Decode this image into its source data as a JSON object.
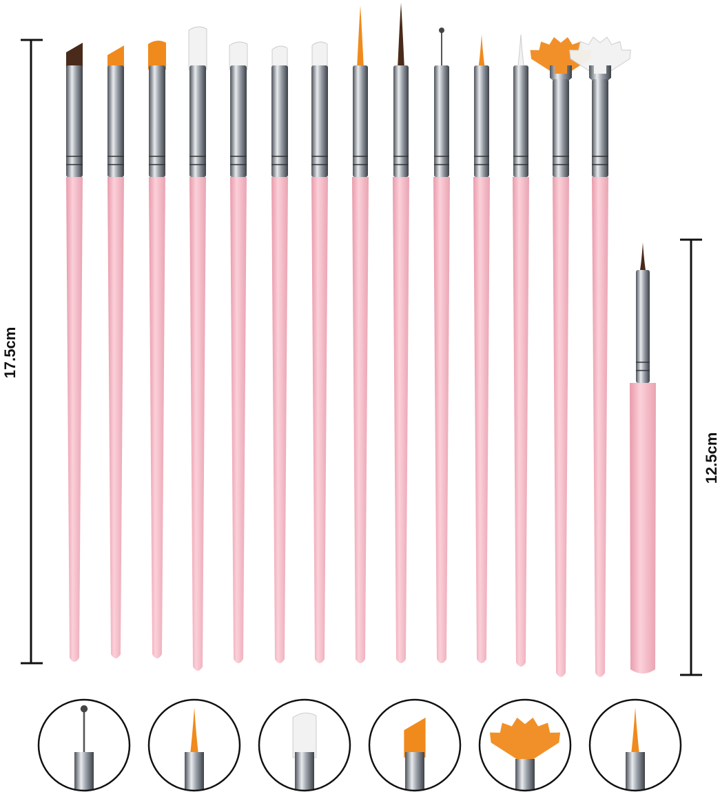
{
  "measurements": {
    "long_label": "17.5cm",
    "short_label": "12.5cm"
  },
  "colors": {
    "handle": "#f7b8c4",
    "handle_shade": "#e99aab",
    "ferrule": "#9aa0a8",
    "orange_bristle": "#f08a1c",
    "white_bristle": "#f2f2f2",
    "brown_bristle": "#4a2a1a",
    "dimension_line": "#111111"
  },
  "brushes": [
    {
      "tip": "flat-angled",
      "bristle": "brown"
    },
    {
      "tip": "angled",
      "bristle": "orange"
    },
    {
      "tip": "flat",
      "bristle": "orange"
    },
    {
      "tip": "flat",
      "bristle": "white"
    },
    {
      "tip": "flat",
      "bristle": "white"
    },
    {
      "tip": "flat-small",
      "bristle": "white"
    },
    {
      "tip": "flat-small",
      "bristle": "white"
    },
    {
      "tip": "liner-long",
      "bristle": "orange"
    },
    {
      "tip": "liner-long",
      "bristle": "brown"
    },
    {
      "tip": "dotting",
      "bristle": "metal"
    },
    {
      "tip": "liner",
      "bristle": "orange"
    },
    {
      "tip": "liner",
      "bristle": "white"
    },
    {
      "tip": "fan",
      "bristle": "orange"
    },
    {
      "tip": "fan",
      "bristle": "white"
    },
    {
      "tip": "liner-short-brush",
      "bristle": "brown"
    }
  ],
  "detail_circles": [
    {
      "tip": "dotting",
      "bristle": "metal"
    },
    {
      "tip": "liner",
      "bristle": "orange"
    },
    {
      "tip": "flat",
      "bristle": "white"
    },
    {
      "tip": "angled",
      "bristle": "orange"
    },
    {
      "tip": "fan",
      "bristle": "orange"
    },
    {
      "tip": "liner",
      "bristle": "orange"
    }
  ]
}
